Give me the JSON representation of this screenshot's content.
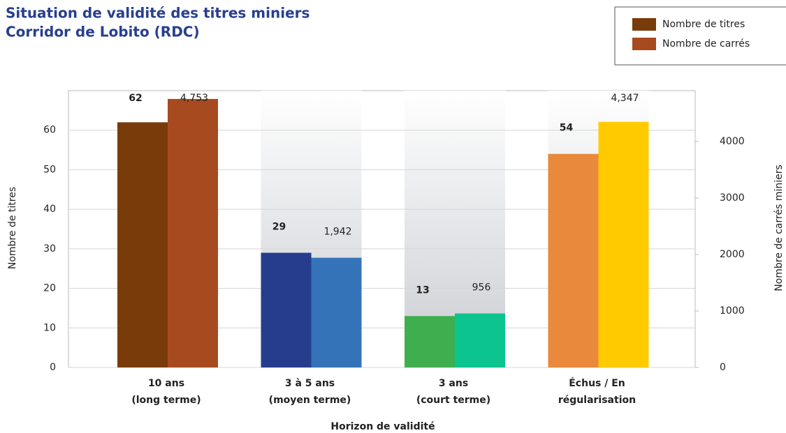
{
  "chart_data": {
    "type": "bar",
    "title": [
      "Situation de validité des titres miniers",
      "Corridor de Lobito (RDC)"
    ],
    "x_label": "Horizon de validité",
    "y_label": "Nombre de titres",
    "y2_label": "Nombre de carrés miniers",
    "categories": [
      [
        "10 ans",
        "(long terme)"
      ],
      [
        "3 à 5 ans",
        "(moyen terme)"
      ],
      [
        "3 ans",
        "(court terme)"
      ],
      [
        "Échus / En",
        "régularisation"
      ]
    ],
    "series": [
      {
        "name": "Nombre de titres",
        "color": "#7a3b0a",
        "colors": [
          "#7a3b0a",
          "#263d8e",
          "#3fae4e",
          "#e8893b"
        ],
        "values": [
          62,
          29,
          13,
          54
        ]
      },
      {
        "name": "Nombre de carrés",
        "color": "#a84a20",
        "colors": [
          "#a84a20",
          "#3573b9",
          "#0cc48f",
          "#ffcb00"
        ],
        "axis": "y2",
        "values": [
          4753,
          1942,
          956,
          4347
        ],
        "value_labels": [
          "4,753",
          "1,942",
          "956",
          "4,347"
        ]
      }
    ],
    "ylim": [
      0,
      70
    ],
    "yticks": [
      0,
      10,
      20,
      30,
      40,
      50,
      60
    ],
    "y2lim": [
      0,
      4900
    ],
    "y2ticks": [
      0,
      1000,
      2000,
      3000,
      4000
    ],
    "grid": true,
    "legend": "top-right"
  }
}
